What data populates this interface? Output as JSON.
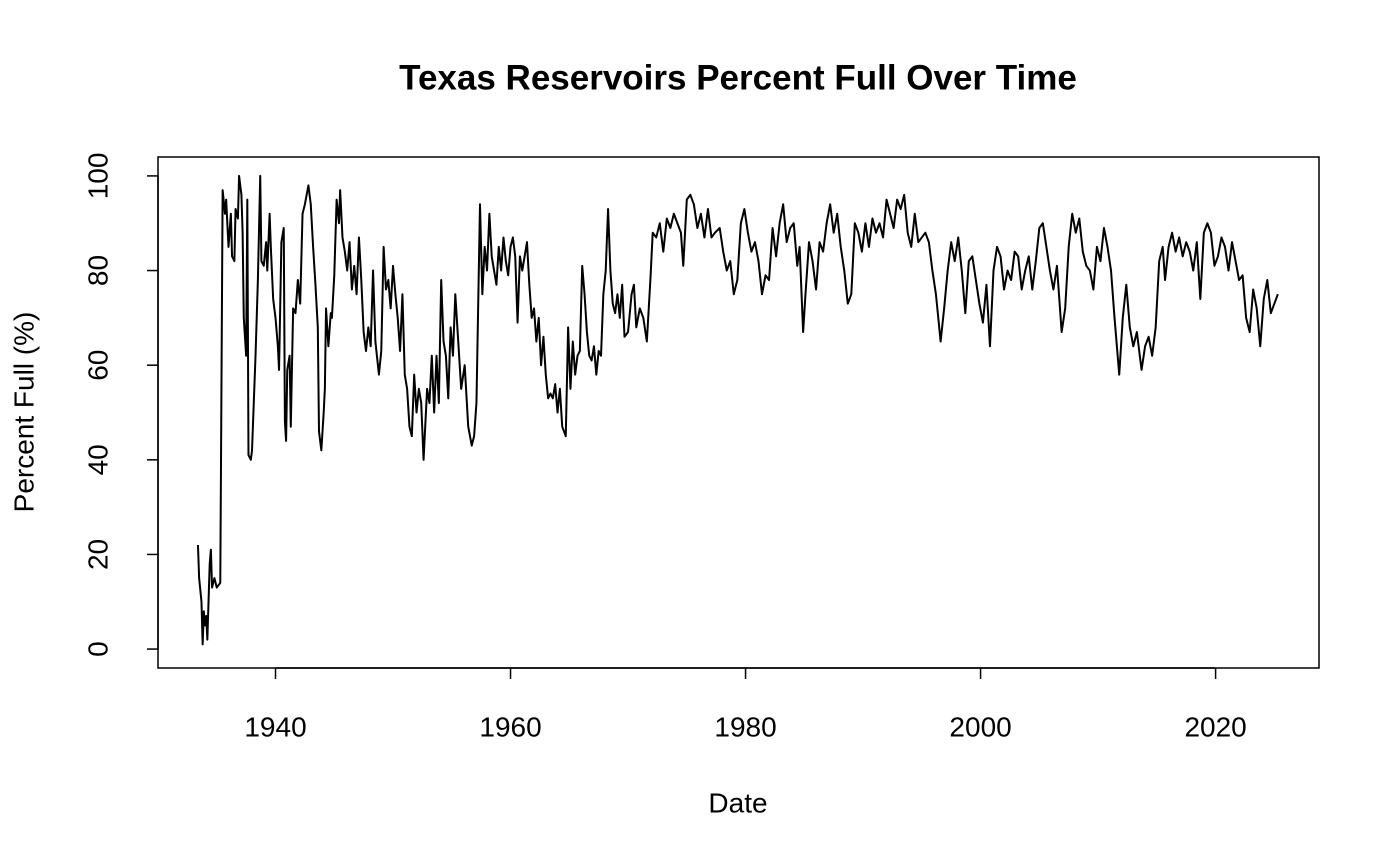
{
  "chart_data": {
    "type": "line",
    "title": "Texas Reservoirs Percent Full Over Time",
    "x_label": "Date",
    "y_label": "Percent Full (%)",
    "color": "#000000",
    "xlim": [
      1930,
      2028.8
    ],
    "xticks": [
      1940,
      1960,
      1980,
      2000,
      2020
    ],
    "ylim": [
      -4,
      104
    ],
    "yticks": [
      0,
      20,
      40,
      60,
      80,
      100
    ],
    "x": [
      1933.4,
      1933.5,
      1933.7,
      1933.8,
      1933.9,
      1934.0,
      1934.1,
      1934.2,
      1934.4,
      1934.5,
      1934.6,
      1934.8,
      1935.0,
      1935.3,
      1935.5,
      1935.7,
      1935.8,
      1936.0,
      1936.2,
      1936.3,
      1936.5,
      1936.6,
      1936.8,
      1936.9,
      1937.1,
      1937.2,
      1937.3,
      1937.5,
      1937.6,
      1937.7,
      1937.9,
      1938.0,
      1938.3,
      1938.5,
      1938.7,
      1938.8,
      1939.0,
      1939.2,
      1939.3,
      1939.5,
      1939.6,
      1939.8,
      1940.0,
      1940.2,
      1940.3,
      1940.5,
      1940.7,
      1940.8,
      1940.9,
      1941.0,
      1941.2,
      1941.3,
      1941.5,
      1941.7,
      1941.9,
      1942.1,
      1942.3,
      1942.5,
      1942.8,
      1943.0,
      1943.2,
      1943.4,
      1943.6,
      1943.7,
      1943.9,
      1944.1,
      1944.2,
      1944.3,
      1944.5,
      1944.7,
      1944.8,
      1945.0,
      1945.2,
      1945.4,
      1945.5,
      1945.7,
      1945.9,
      1946.1,
      1946.3,
      1946.5,
      1946.7,
      1946.9,
      1947.1,
      1947.3,
      1947.5,
      1947.7,
      1947.9,
      1948.1,
      1948.3,
      1948.5,
      1948.8,
      1949.0,
      1949.2,
      1949.4,
      1949.6,
      1949.8,
      1950.0,
      1950.2,
      1950.4,
      1950.6,
      1950.8,
      1951.0,
      1951.2,
      1951.4,
      1951.6,
      1951.8,
      1952.0,
      1952.2,
      1952.4,
      1952.6,
      1952.9,
      1953.1,
      1953.3,
      1953.5,
      1953.7,
      1953.9,
      1954.1,
      1954.3,
      1954.5,
      1954.7,
      1954.9,
      1955.1,
      1955.3,
      1955.5,
      1955.8,
      1956.1,
      1956.4,
      1956.7,
      1956.9,
      1957.1,
      1957.4,
      1957.6,
      1957.8,
      1958.0,
      1958.2,
      1958.4,
      1958.6,
      1958.8,
      1959.0,
      1959.2,
      1959.4,
      1959.6,
      1959.8,
      1960.0,
      1960.2,
      1960.4,
      1960.6,
      1960.8,
      1961.0,
      1961.4,
      1961.6,
      1961.8,
      1962.0,
      1962.2,
      1962.4,
      1962.6,
      1962.8,
      1963.0,
      1963.2,
      1963.4,
      1963.6,
      1963.8,
      1964.0,
      1964.2,
      1964.4,
      1964.7,
      1964.9,
      1965.1,
      1965.3,
      1965.5,
      1965.7,
      1965.9,
      1966.1,
      1966.3,
      1966.5,
      1966.7,
      1966.9,
      1967.1,
      1967.3,
      1967.5,
      1967.7,
      1967.9,
      1968.1,
      1968.3,
      1968.5,
      1968.7,
      1968.9,
      1969.1,
      1969.3,
      1969.5,
      1969.7,
      1970.0,
      1970.3,
      1970.5,
      1970.7,
      1971.0,
      1971.3,
      1971.6,
      1971.9,
      1972.1,
      1972.4,
      1972.7,
      1973.0,
      1973.3,
      1973.6,
      1973.9,
      1974.2,
      1974.5,
      1974.7,
      1975.0,
      1975.3,
      1975.6,
      1975.9,
      1976.2,
      1976.5,
      1976.8,
      1977.1,
      1977.4,
      1977.8,
      1978.1,
      1978.4,
      1978.7,
      1979.0,
      1979.3,
      1979.6,
      1979.9,
      1980.2,
      1980.5,
      1980.8,
      1981.1,
      1981.4,
      1981.7,
      1982.0,
      1982.3,
      1982.6,
      1982.9,
      1983.2,
      1983.5,
      1983.8,
      1984.1,
      1984.4,
      1984.6,
      1984.9,
      1985.1,
      1985.4,
      1985.7,
      1986.0,
      1986.3,
      1986.6,
      1986.9,
      1987.2,
      1987.5,
      1987.8,
      1988.1,
      1988.4,
      1988.7,
      1989.0,
      1989.3,
      1989.6,
      1989.9,
      1990.2,
      1990.5,
      1990.8,
      1991.1,
      1991.4,
      1991.7,
      1992.0,
      1992.3,
      1992.6,
      1992.9,
      1993.2,
      1993.5,
      1993.8,
      1994.1,
      1994.4,
      1994.7,
      1995.0,
      1995.3,
      1995.6,
      1995.9,
      1996.2,
      1996.6,
      1996.9,
      1997.2,
      1997.5,
      1997.8,
      1998.1,
      1998.4,
      1998.7,
      1999.0,
      1999.3,
      1999.6,
      1999.9,
      2000.2,
      2000.5,
      2000.8,
      2001.1,
      2001.4,
      2001.7,
      2002.0,
      2002.3,
      2002.6,
      2002.9,
      2003.2,
      2003.5,
      2003.8,
      2004.1,
      2004.4,
      2004.7,
      2005.0,
      2005.3,
      2005.6,
      2005.9,
      2006.2,
      2006.5,
      2006.9,
      2007.2,
      2007.5,
      2007.8,
      2008.1,
      2008.4,
      2008.7,
      2009.0,
      2009.3,
      2009.6,
      2009.9,
      2010.2,
      2010.5,
      2010.8,
      2011.1,
      2011.4,
      2011.8,
      2012.1,
      2012.4,
      2012.7,
      2013.0,
      2013.3,
      2013.7,
      2014.0,
      2014.3,
      2014.6,
      2014.9,
      2015.2,
      2015.5,
      2015.7,
      2016.0,
      2016.3,
      2016.6,
      2016.9,
      2017.2,
      2017.5,
      2017.8,
      2018.1,
      2018.4,
      2018.7,
      2019.0,
      2019.3,
      2019.6,
      2019.9,
      2020.2,
      2020.5,
      2020.8,
      2021.1,
      2021.4,
      2021.7,
      2022.0,
      2022.3,
      2022.6,
      2022.9,
      2023.2,
      2023.5,
      2023.8,
      2024.1,
      2024.4,
      2024.7,
      2025.0,
      2025.3
    ],
    "values": [
      22,
      15,
      10,
      1,
      8,
      5,
      7,
      2,
      18,
      21,
      13,
      15,
      13,
      14,
      97,
      92,
      95,
      85,
      92,
      83,
      82,
      93,
      91,
      100,
      96,
      88,
      70,
      62,
      95,
      41,
      40,
      42,
      62,
      78,
      100,
      82,
      81,
      86,
      80,
      92,
      85,
      74,
      70,
      64,
      59,
      86,
      89,
      48,
      44,
      59,
      62,
      47,
      72,
      71,
      78,
      73,
      92,
      94,
      98,
      94,
      85,
      77,
      68,
      46,
      42,
      50,
      55,
      72,
      64,
      71,
      70,
      79,
      95,
      90,
      97,
      87,
      84,
      80,
      86,
      76,
      81,
      75,
      87,
      78,
      67,
      63,
      68,
      64,
      80,
      65,
      58,
      63,
      85,
      76,
      78,
      72,
      81,
      75,
      70,
      63,
      75,
      58,
      55,
      47,
      45,
      58,
      50,
      55,
      52,
      40,
      55,
      52,
      62,
      50,
      62,
      52,
      78,
      65,
      62,
      53,
      68,
      62,
      75,
      67,
      55,
      60,
      47,
      43,
      45,
      52,
      94,
      75,
      85,
      80,
      92,
      83,
      80,
      77,
      85,
      80,
      87,
      82,
      79,
      85,
      87,
      83,
      69,
      83,
      80,
      86,
      77,
      70,
      72,
      65,
      70,
      60,
      66,
      58,
      53,
      54,
      53,
      56,
      50,
      55,
      47,
      45,
      68,
      55,
      65,
      58,
      62,
      63,
      81,
      75,
      67,
      62,
      61,
      64,
      58,
      63,
      62,
      75,
      80,
      93,
      80,
      73,
      71,
      75,
      70,
      77,
      66,
      67,
      75,
      77,
      68,
      72,
      70,
      65,
      78,
      88,
      87,
      90,
      84,
      91,
      89,
      92,
      90,
      88,
      81,
      95,
      96,
      94,
      89,
      92,
      87,
      93,
      87,
      88,
      89,
      84,
      80,
      82,
      75,
      78,
      90,
      93,
      88,
      84,
      86,
      82,
      75,
      79,
      78,
      89,
      83,
      90,
      94,
      86,
      89,
      90,
      81,
      85,
      67,
      75,
      86,
      82,
      76,
      86,
      84,
      90,
      94,
      88,
      92,
      85,
      80,
      73,
      75,
      90,
      88,
      84,
      90,
      85,
      91,
      88,
      90,
      87,
      95,
      92,
      89,
      95,
      93,
      96,
      88,
      85,
      92,
      86,
      87,
      88,
      86,
      80,
      75,
      65,
      72,
      80,
      86,
      82,
      87,
      80,
      71,
      82,
      83,
      78,
      73,
      69,
      77,
      64,
      80,
      85,
      83,
      76,
      80,
      78,
      84,
      83,
      76,
      80,
      83,
      76,
      82,
      89,
      90,
      85,
      80,
      76,
      81,
      67,
      72,
      85,
      92,
      88,
      91,
      84,
      81,
      80,
      76,
      85,
      82,
      89,
      85,
      80,
      70,
      58,
      70,
      77,
      68,
      64,
      67,
      59,
      64,
      66,
      62,
      68,
      82,
      85,
      78,
      85,
      88,
      84,
      87,
      83,
      86,
      84,
      80,
      86,
      74,
      88,
      90,
      88,
      81,
      83,
      87,
      85,
      80,
      86,
      82,
      78,
      79,
      70,
      67,
      76,
      72,
      64,
      74,
      78,
      71,
      73,
      75
    ]
  }
}
